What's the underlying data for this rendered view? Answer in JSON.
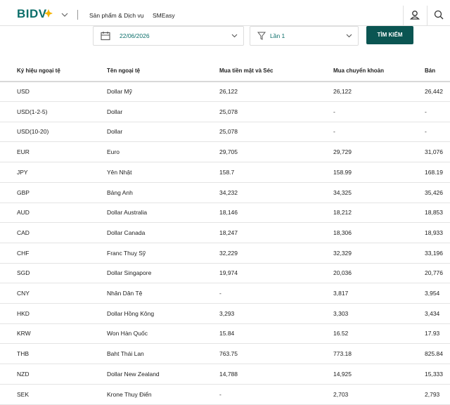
{
  "header": {
    "logo": "BIDV",
    "nav": [
      "Sản phẩm & Dịch vụ",
      "SMEasy"
    ]
  },
  "filters": {
    "date": "22/06/2026",
    "session": "Lần 1",
    "button": "TÌM KIẾM"
  },
  "table": {
    "columns": [
      "Ký hiệu ngoại tệ",
      "Tên ngoại tệ",
      "Mua tiền mặt và Séc",
      "Mua chuyển khoản",
      "Bán"
    ],
    "rows": [
      [
        "USD",
        "Dollar Mỹ",
        "26,122",
        "26,122",
        "26,442"
      ],
      [
        "USD(1-2-5)",
        "Dollar",
        "25,078",
        "-",
        "-"
      ],
      [
        "USD(10-20)",
        "Dollar",
        "25,078",
        "-",
        "-"
      ],
      [
        "EUR",
        "Euro",
        "29,705",
        "29,729",
        "31,076"
      ],
      [
        "JPY",
        "Yên Nhật",
        "158.7",
        "158.99",
        "168.19"
      ],
      [
        "GBP",
        "Bảng Anh",
        "34,232",
        "34,325",
        "35,426"
      ],
      [
        "AUD",
        "Dollar Australia",
        "18,146",
        "18,212",
        "18,853"
      ],
      [
        "CAD",
        "Dollar Canada",
        "18,247",
        "18,306",
        "18,933"
      ],
      [
        "CHF",
        "Franc Thuỵ Sỹ",
        "32,229",
        "32,329",
        "33,196"
      ],
      [
        "SGD",
        "Dollar Singapore",
        "19,974",
        "20,036",
        "20,776"
      ],
      [
        "CNY",
        "Nhân Dân Tệ",
        "-",
        "3,817",
        "3,954"
      ],
      [
        "HKD",
        "Dollar Hồng Kông",
        "3,293",
        "3,303",
        "3,434"
      ],
      [
        "KRW",
        "Won Hàn Quốc",
        "15.84",
        "16.52",
        "17.93"
      ],
      [
        "THB",
        "Baht Thái Lan",
        "763.75",
        "773.18",
        "825.84"
      ],
      [
        "NZD",
        "Dollar New Zealand",
        "14,788",
        "14,925",
        "15,333"
      ],
      [
        "SEK",
        "Krone Thuỵ Điển",
        "-",
        "2,703",
        "2,793"
      ]
    ]
  }
}
